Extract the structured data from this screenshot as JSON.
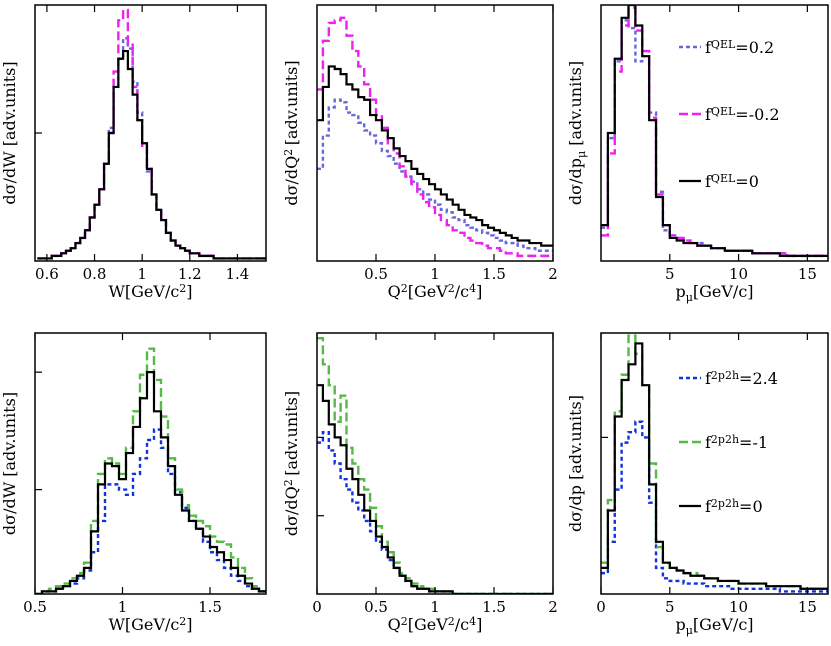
{
  "chart_data": [
    {
      "type": "line",
      "panel": "top-left",
      "xlabel": "W[GeV/c^2]",
      "ylabel": "dσ/dW [adv.units]",
      "xlim": [
        0.55,
        1.52
      ],
      "ylim": [
        0,
        1.0
      ],
      "xticks": [
        0.6,
        0.8,
        1,
        1.2,
        1.4
      ],
      "xticklabels": [
        "0.6",
        "0.8",
        "1",
        "1.2",
        "1.4"
      ],
      "yticks": [
        0.5
      ],
      "legend": null,
      "x_start": 0.56,
      "x_step": 0.02,
      "series": [
        {
          "name": "f^QEL=0.2",
          "color": "#6666dd",
          "dash": "dash",
          "values": [
            0.01,
            0.01,
            0.01,
            0.02,
            0.02,
            0.03,
            0.04,
            0.05,
            0.07,
            0.09,
            0.12,
            0.17,
            0.22,
            0.28,
            0.38,
            0.52,
            0.68,
            0.79,
            0.87,
            0.83,
            0.7,
            0.58,
            0.46,
            0.35,
            0.26,
            0.2,
            0.16,
            0.11,
            0.08,
            0.06,
            0.05,
            0.04,
            0.03,
            0.03,
            0.02,
            0.02,
            0.02,
            0.01,
            0.01,
            0.01,
            0.01,
            0.01,
            0.01,
            0.01,
            0.01,
            0.01,
            0.01,
            0.01
          ]
        },
        {
          "name": "f^QEL=-0.2",
          "color": "#ee22ee",
          "dash": "longdash",
          "values": [
            0.01,
            0.01,
            0.01,
            0.02,
            0.02,
            0.03,
            0.04,
            0.05,
            0.07,
            0.09,
            0.12,
            0.17,
            0.22,
            0.28,
            0.38,
            0.5,
            0.74,
            0.94,
            0.98,
            0.85,
            0.68,
            0.55,
            0.45,
            0.36,
            0.26,
            0.2,
            0.16,
            0.11,
            0.08,
            0.06,
            0.05,
            0.04,
            0.03,
            0.03,
            0.02,
            0.02,
            0.02,
            0.01,
            0.01,
            0.01,
            0.01,
            0.01,
            0.01,
            0.01,
            0.01,
            0.01,
            0.01,
            0.01
          ]
        },
        {
          "name": "f^QEL=0",
          "color": "#000000",
          "dash": "solid",
          "values": [
            0.01,
            0.01,
            0.01,
            0.02,
            0.02,
            0.03,
            0.04,
            0.05,
            0.07,
            0.09,
            0.12,
            0.17,
            0.22,
            0.28,
            0.38,
            0.5,
            0.68,
            0.79,
            0.82,
            0.75,
            0.65,
            0.55,
            0.46,
            0.36,
            0.26,
            0.2,
            0.16,
            0.11,
            0.08,
            0.06,
            0.05,
            0.04,
            0.03,
            0.03,
            0.02,
            0.02,
            0.02,
            0.01,
            0.01,
            0.01,
            0.01,
            0.01,
            0.01,
            0.01,
            0.01,
            0.01,
            0.01,
            0.01
          ]
        }
      ]
    },
    {
      "type": "line",
      "panel": "top-middle",
      "xlabel": "Q^2[GeV^2/c^4]",
      "ylabel": "dσ/dQ^2 [adv.units]",
      "xlim": [
        0,
        2.0
      ],
      "ylim": [
        0,
        1.0
      ],
      "xticks": [
        0.5,
        1,
        1.5,
        2
      ],
      "xticklabels": [
        "0.5",
        "1",
        "1.5",
        "2"
      ],
      "yticks": [],
      "legend": null,
      "x_start": 0,
      "x_step": 0.05,
      "series": [
        {
          "name": "f^QEL=0.2",
          "color": "#6666dd",
          "dash": "dash",
          "values": [
            0.36,
            0.49,
            0.6,
            0.63,
            0.62,
            0.58,
            0.57,
            0.54,
            0.51,
            0.49,
            0.46,
            0.43,
            0.41,
            0.38,
            0.35,
            0.33,
            0.31,
            0.28,
            0.26,
            0.24,
            0.22,
            0.2,
            0.19,
            0.17,
            0.16,
            0.14,
            0.13,
            0.12,
            0.11,
            0.1,
            0.09,
            0.08,
            0.07,
            0.07,
            0.06,
            0.05,
            0.05,
            0.04,
            0.04,
            0.04
          ]
        },
        {
          "name": "f^QEL=-0.2",
          "color": "#ee22ee",
          "dash": "longdash",
          "values": [
            0.67,
            0.86,
            0.93,
            0.94,
            0.95,
            0.88,
            0.82,
            0.76,
            0.69,
            0.63,
            0.57,
            0.52,
            0.46,
            0.42,
            0.37,
            0.33,
            0.3,
            0.26,
            0.23,
            0.21,
            0.18,
            0.16,
            0.14,
            0.12,
            0.11,
            0.09,
            0.08,
            0.07,
            0.06,
            0.05,
            0.05,
            0.04,
            0.03,
            0.03,
            0.02,
            0.02,
            0.02,
            0.02,
            0.02,
            0.02
          ]
        },
        {
          "name": "f^QEL=0",
          "color": "#000000",
          "dash": "solid",
          "values": [
            0.55,
            0.68,
            0.76,
            0.75,
            0.73,
            0.69,
            0.67,
            0.64,
            0.63,
            0.57,
            0.55,
            0.51,
            0.48,
            0.44,
            0.41,
            0.39,
            0.36,
            0.34,
            0.32,
            0.3,
            0.28,
            0.26,
            0.24,
            0.22,
            0.2,
            0.18,
            0.17,
            0.16,
            0.14,
            0.13,
            0.12,
            0.11,
            0.1,
            0.09,
            0.08,
            0.08,
            0.07,
            0.07,
            0.06,
            0.06
          ]
        }
      ]
    },
    {
      "type": "line",
      "panel": "top-right",
      "xlabel": "p_μ[GeV/c]",
      "ylabel": "dσ/dp_μ [adv.units]",
      "xlim": [
        0,
        16.5
      ],
      "ylim": [
        0,
        1.0
      ],
      "xticks": [
        5,
        10,
        15
      ],
      "xticklabels": [
        "5",
        "10",
        "15"
      ],
      "yticks": [],
      "legend": {
        "position": "top-right",
        "entries": [
          "f^QEL=0.2",
          "f^QEL=-0.2",
          "f^QEL=0"
        ]
      },
      "x_start": 0,
      "x_step": 0.5,
      "series": [
        {
          "name": "f^QEL=0.2",
          "color": "#6666dd",
          "dash": "dash",
          "values": [
            0.13,
            0.48,
            0.78,
            0.94,
            0.91,
            0.78,
            0.8,
            0.58,
            0.27,
            0.12,
            0.1,
            0.09,
            0.08,
            0.07,
            0.07,
            0.06,
            0.05,
            0.05,
            0.04,
            0.04,
            0.04,
            0.04,
            0.03,
            0.03,
            0.03,
            0.03,
            0.03,
            0.02,
            0.02,
            0.02,
            0.02,
            0.02,
            0.02
          ]
        },
        {
          "name": "f^QEL=-0.2",
          "color": "#ee22ee",
          "dash": "longdash",
          "values": [
            0.1,
            0.42,
            0.74,
            0.92,
            0.99,
            0.9,
            0.82,
            0.56,
            0.26,
            0.14,
            0.1,
            0.09,
            0.08,
            0.07,
            0.06,
            0.06,
            0.05,
            0.05,
            0.04,
            0.04,
            0.04,
            0.04,
            0.03,
            0.03,
            0.03,
            0.03,
            0.03,
            0.02,
            0.02,
            0.02,
            0.02,
            0.02,
            0.02
          ]
        },
        {
          "name": "f^QEL=0",
          "color": "#000000",
          "dash": "solid",
          "values": [
            0.14,
            0.5,
            0.79,
            0.95,
            1.0,
            0.92,
            0.8,
            0.55,
            0.25,
            0.14,
            0.09,
            0.08,
            0.07,
            0.07,
            0.06,
            0.06,
            0.05,
            0.05,
            0.04,
            0.04,
            0.04,
            0.04,
            0.03,
            0.03,
            0.03,
            0.03,
            0.02,
            0.02,
            0.02,
            0.02,
            0.02,
            0.02,
            0.02
          ]
        }
      ]
    },
    {
      "type": "line",
      "panel": "bottom-left",
      "xlabel": "W[GeV/c^2]",
      "ylabel": "dσ/dW [adv.units]",
      "xlim": [
        0.5,
        1.82
      ],
      "ylim": [
        0,
        1.0
      ],
      "xticks": [
        0.5,
        1,
        1.5
      ],
      "xticklabels": [
        "0.5",
        "1",
        "1.5"
      ],
      "yticks": [
        0.4,
        0.85
      ],
      "legend": null,
      "x_start": 0.5,
      "x_step": 0.04,
      "series": [
        {
          "name": "f^2p2h=2.4",
          "color": "#1133dd",
          "dash": "dash",
          "values": [
            0.0,
            0.01,
            0.01,
            0.02,
            0.03,
            0.04,
            0.06,
            0.09,
            0.16,
            0.28,
            0.42,
            0.42,
            0.4,
            0.38,
            0.46,
            0.52,
            0.59,
            0.63,
            0.56,
            0.46,
            0.39,
            0.33,
            0.28,
            0.25,
            0.2,
            0.16,
            0.13,
            0.1,
            0.07,
            0.05,
            0.03,
            0.02,
            0.01
          ]
        },
        {
          "name": "f^2p2h=-1",
          "color": "#55bb44",
          "dash": "longdash",
          "values": [
            0.0,
            0.01,
            0.02,
            0.03,
            0.04,
            0.06,
            0.08,
            0.12,
            0.28,
            0.46,
            0.52,
            0.5,
            0.46,
            0.56,
            0.7,
            0.84,
            0.94,
            0.82,
            0.68,
            0.52,
            0.4,
            0.34,
            0.3,
            0.28,
            0.26,
            0.22,
            0.2,
            0.19,
            0.14,
            0.1,
            0.06,
            0.03,
            0.01
          ]
        },
        {
          "name": "f^2p2h=0",
          "color": "#000000",
          "dash": "solid",
          "values": [
            0.0,
            0.01,
            0.01,
            0.02,
            0.03,
            0.05,
            0.07,
            0.1,
            0.24,
            0.42,
            0.5,
            0.49,
            0.44,
            0.54,
            0.64,
            0.75,
            0.85,
            0.7,
            0.6,
            0.49,
            0.38,
            0.32,
            0.28,
            0.25,
            0.22,
            0.18,
            0.16,
            0.13,
            0.1,
            0.07,
            0.04,
            0.02,
            0.01
          ]
        }
      ]
    },
    {
      "type": "line",
      "panel": "bottom-middle",
      "xlabel": "Q^2[GeV^2/c^4]",
      "ylabel": "dσ/dQ^2 [adv.units]",
      "xlim": [
        0,
        2.0
      ],
      "ylim": [
        0,
        1.0
      ],
      "xticks": [
        0,
        0.5,
        1,
        1.5,
        2
      ],
      "xticklabels": [
        "0",
        "0.5",
        "1",
        "1.5",
        "2"
      ],
      "yticks": [
        0.3,
        0.6
      ],
      "legend": null,
      "x_start": 0,
      "x_step": 0.05,
      "series": [
        {
          "name": "f^2p2h=2.4",
          "color": "#1133dd",
          "dash": "dash",
          "values": [
            0.58,
            0.62,
            0.55,
            0.5,
            0.44,
            0.4,
            0.35,
            0.32,
            0.28,
            0.24,
            0.2,
            0.17,
            0.13,
            0.1,
            0.07,
            0.05,
            0.03,
            0.02,
            0.02,
            0.01,
            0.01,
            0.01,
            0.01,
            0.0,
            0.0,
            0.0,
            0.0,
            0.0,
            0.0,
            0.0,
            0.0,
            0.0,
            0.0,
            0.0,
            0.0,
            0.0,
            0.0,
            0.0,
            0.0,
            0.0
          ]
        },
        {
          "name": "f^2p2h=-1",
          "color": "#55bb44",
          "dash": "longdash",
          "values": [
            0.98,
            0.88,
            0.8,
            0.66,
            0.76,
            0.56,
            0.5,
            0.44,
            0.4,
            0.33,
            0.26,
            0.2,
            0.16,
            0.12,
            0.08,
            0.06,
            0.04,
            0.03,
            0.02,
            0.02,
            0.01,
            0.01,
            0.01,
            0.0,
            0.0,
            0.0,
            0.0,
            0.0,
            0.0,
            0.0,
            0.0,
            0.0,
            0.0,
            0.0,
            0.0,
            0.0,
            0.0,
            0.0,
            0.0,
            0.0
          ]
        },
        {
          "name": "f^2p2h=0",
          "color": "#000000",
          "dash": "solid",
          "values": [
            0.8,
            0.74,
            0.65,
            0.6,
            0.57,
            0.48,
            0.44,
            0.38,
            0.32,
            0.28,
            0.22,
            0.18,
            0.14,
            0.1,
            0.07,
            0.05,
            0.03,
            0.02,
            0.02,
            0.01,
            0.01,
            0.01,
            0.01,
            0.0,
            0.0,
            0.0,
            0.0,
            0.0,
            0.0,
            0.0,
            0.0,
            0.0,
            0.0,
            0.0,
            0.0,
            0.0,
            0.0,
            0.0,
            0.0,
            0.0
          ]
        }
      ]
    },
    {
      "type": "line",
      "panel": "bottom-right",
      "xlabel": "p_μ[GeV/c]",
      "ylabel": "dσ/dp [adv.units]",
      "xlim": [
        0,
        16.5
      ],
      "ylim": [
        0,
        1.0
      ],
      "xticks": [
        0,
        5,
        10,
        15
      ],
      "xticklabels": [
        "0",
        "5",
        "10",
        "15"
      ],
      "yticks": [
        0.6
      ],
      "legend": {
        "position": "top-right",
        "entries": [
          "f^2p2h=2.4",
          "f^2p2h=-1",
          "f^2p2h=0"
        ]
      },
      "x_start": 0,
      "x_step": 0.5,
      "series": [
        {
          "name": "f^2p2h=2.4",
          "color": "#1133dd",
          "dash": "dash",
          "values": [
            0.08,
            0.2,
            0.4,
            0.58,
            0.62,
            0.66,
            0.6,
            0.35,
            0.1,
            0.06,
            0.05,
            0.05,
            0.04,
            0.04,
            0.04,
            0.03,
            0.03,
            0.03,
            0.03,
            0.02,
            0.02,
            0.02,
            0.02,
            0.02,
            0.02,
            0.02,
            0.01,
            0.01,
            0.01,
            0.01,
            0.01,
            0.01,
            0.01
          ]
        },
        {
          "name": "f^2p2h=-1",
          "color": "#55bb44",
          "dash": "longdash",
          "values": [
            0.12,
            0.36,
            0.7,
            0.84,
            0.99,
            0.92,
            0.8,
            0.5,
            0.18,
            0.12,
            0.1,
            0.09,
            0.08,
            0.08,
            0.07,
            0.06,
            0.06,
            0.05,
            0.05,
            0.05,
            0.04,
            0.04,
            0.04,
            0.04,
            0.03,
            0.03,
            0.03,
            0.03,
            0.03,
            0.02,
            0.02,
            0.02,
            0.02
          ]
        },
        {
          "name": "f^2p2h=0",
          "color": "#000000",
          "dash": "solid",
          "values": [
            0.1,
            0.32,
            0.68,
            0.82,
            0.88,
            0.96,
            0.8,
            0.42,
            0.2,
            0.12,
            0.1,
            0.09,
            0.08,
            0.07,
            0.07,
            0.06,
            0.06,
            0.05,
            0.05,
            0.05,
            0.04,
            0.04,
            0.04,
            0.04,
            0.03,
            0.03,
            0.03,
            0.03,
            0.03,
            0.02,
            0.02,
            0.02,
            0.02
          ]
        }
      ]
    }
  ]
}
